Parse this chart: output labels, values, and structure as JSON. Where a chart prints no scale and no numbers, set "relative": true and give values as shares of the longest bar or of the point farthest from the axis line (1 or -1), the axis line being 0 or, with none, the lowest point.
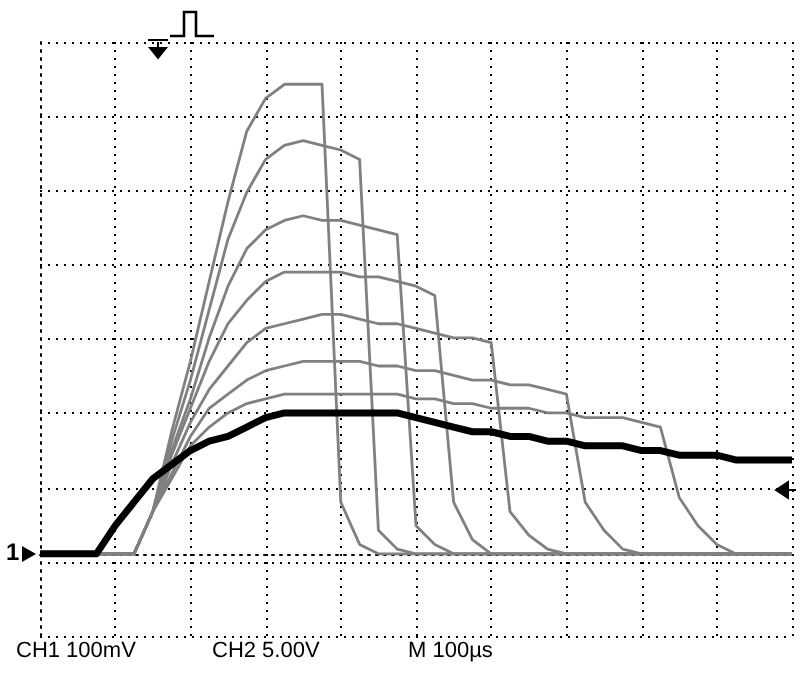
{
  "chart_data": {
    "type": "line",
    "relative": true,
    "grid": true,
    "marker": "none",
    "categories": [
      null,
      null,
      null,
      null,
      null,
      null,
      null,
      null,
      null,
      null,
      null,
      null,
      null,
      null,
      null,
      null,
      null,
      null,
      null,
      null,
      null,
      null,
      null,
      null,
      null,
      null,
      null,
      null,
      null,
      null,
      null,
      null,
      null,
      null,
      null,
      null,
      null,
      null,
      null,
      null,
      null
    ],
    "series": [
      {
        "color": "#808080",
        "values": [
          0,
          0,
          0,
          0,
          0,
          0,
          0.09,
          0.26,
          0.41,
          0.58,
          0.75,
          0.9,
          0.97,
          1,
          1,
          1,
          0.11,
          0.02,
          0,
          0,
          0,
          0,
          0,
          0,
          0,
          0,
          0,
          0,
          0,
          0,
          0,
          0,
          0,
          0,
          0,
          0,
          0,
          0,
          0,
          0,
          0
        ]
      },
      {
        "color": "#808080",
        "values": [
          0,
          0,
          0,
          0,
          0,
          0,
          0.09,
          0.24,
          0.37,
          0.52,
          0.67,
          0.77,
          0.84,
          0.87,
          0.88,
          0.87,
          0.86,
          0.84,
          0.05,
          0.01,
          0,
          0,
          0,
          0,
          0,
          0,
          0,
          0,
          0,
          0,
          0,
          0,
          0,
          0,
          0,
          0,
          0,
          0,
          0,
          0,
          0
        ]
      },
      {
        "color": "#808080",
        "values": [
          0,
          0,
          0,
          0,
          0,
          0,
          0.09,
          0.22,
          0.33,
          0.46,
          0.57,
          0.65,
          0.69,
          0.71,
          0.72,
          0.71,
          0.71,
          0.7,
          0.69,
          0.68,
          0.06,
          0.02,
          0,
          0,
          0,
          0,
          0,
          0,
          0,
          0,
          0,
          0,
          0,
          0,
          0,
          0,
          0,
          0,
          0,
          0,
          0
        ]
      },
      {
        "color": "#808080",
        "values": [
          0,
          0,
          0,
          0,
          0,
          0,
          0.09,
          0.21,
          0.31,
          0.41,
          0.49,
          0.54,
          0.58,
          0.6,
          0.6,
          0.6,
          0.6,
          0.59,
          0.59,
          0.58,
          0.57,
          0.55,
          0.11,
          0.03,
          0,
          0,
          0,
          0,
          0,
          0,
          0,
          0,
          0,
          0,
          0,
          0,
          0,
          0,
          0,
          0,
          0
        ]
      },
      {
        "color": "#808080",
        "values": [
          0,
          0,
          0,
          0,
          0,
          0,
          0.09,
          0.19,
          0.28,
          0.35,
          0.4,
          0.45,
          0.48,
          0.49,
          0.5,
          0.51,
          0.51,
          0.5,
          0.49,
          0.49,
          0.48,
          0.47,
          0.46,
          0.46,
          0.45,
          0.09,
          0.04,
          0.01,
          0,
          0,
          0,
          0,
          0,
          0,
          0,
          0,
          0,
          0,
          0,
          0,
          0
        ]
      },
      {
        "color": "#808080",
        "values": [
          0,
          0,
          0,
          0,
          0,
          0,
          0.09,
          0.17,
          0.25,
          0.31,
          0.34,
          0.37,
          0.39,
          0.4,
          0.41,
          0.41,
          0.41,
          0.41,
          0.4,
          0.4,
          0.39,
          0.39,
          0.38,
          0.37,
          0.37,
          0.36,
          0.36,
          0.35,
          0.34,
          0.11,
          0.05,
          0.01,
          0,
          0,
          0,
          0,
          0,
          0,
          0,
          0,
          0
        ]
      },
      {
        "color": "#808080",
        "values": [
          0,
          0,
          0,
          0,
          0,
          0,
          0.09,
          0.16,
          0.23,
          0.27,
          0.3,
          0.32,
          0.33,
          0.34,
          0.34,
          0.34,
          0.34,
          0.34,
          0.34,
          0.34,
          0.33,
          0.33,
          0.32,
          0.32,
          0.31,
          0.31,
          0.31,
          0.3,
          0.3,
          0.29,
          0.29,
          0.29,
          0.28,
          0.27,
          0.12,
          0.06,
          0.02,
          0,
          0,
          0,
          0
        ]
      },
      {
        "color": "#000000",
        "values": [
          0,
          0,
          0,
          0,
          0.06,
          0.11,
          0.16,
          0.19,
          0.22,
          0.24,
          0.25,
          0.27,
          0.29,
          0.3,
          0.3,
          0.3,
          0.3,
          0.3,
          0.3,
          0.3,
          0.29,
          0.28,
          0.27,
          0.26,
          0.26,
          0.25,
          0.25,
          0.24,
          0.24,
          0.23,
          0.23,
          0.23,
          0.22,
          0.22,
          0.21,
          0.21,
          0.21,
          0.2,
          0.2,
          0.2,
          0.2
        ]
      }
    ],
    "annotations": [
      "1",
      "CH1 100mV",
      "CH2 5.00V",
      "M 100µs"
    ]
  }
}
